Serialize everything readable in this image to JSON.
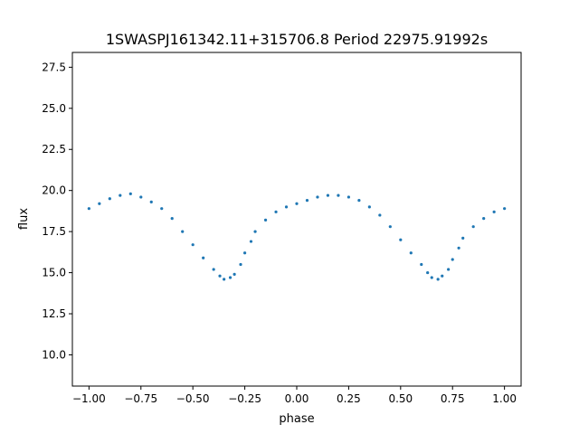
{
  "chart_data": {
    "type": "scatter",
    "title": "1SWASPJ161342.11+315706.8 Period 22975.91992s",
    "xlabel": "phase",
    "ylabel": "flux",
    "xlim": [
      -1.08,
      1.08
    ],
    "ylim": [
      8.1,
      28.4
    ],
    "xticks": [
      -1.0,
      -0.75,
      -0.5,
      -0.25,
      0.0,
      0.25,
      0.5,
      0.75,
      1.0
    ],
    "xtick_labels": [
      "−1.00",
      "−0.75",
      "−0.50",
      "−0.25",
      "0.00",
      "0.25",
      "0.50",
      "0.75",
      "1.00"
    ],
    "yticks": [
      10.0,
      12.5,
      15.0,
      17.5,
      20.0,
      22.5,
      25.0,
      27.5
    ],
    "ytick_labels": [
      "10.0",
      "12.5",
      "15.0",
      "17.5",
      "20.0",
      "22.5",
      "25.0",
      "27.5"
    ],
    "grid": false,
    "point_color": "#1f77b4",
    "series": [
      {
        "x": [
          -1.0,
          -0.95,
          -0.9,
          -0.85,
          -0.8,
          -0.75,
          -0.7,
          -0.65,
          -0.6,
          -0.55,
          -0.5,
          -0.45,
          -0.4,
          -0.37,
          -0.35,
          -0.32,
          -0.3,
          -0.27,
          -0.25,
          -0.22,
          -0.2,
          -0.15,
          -0.1,
          -0.05,
          0.0,
          0.05,
          0.1,
          0.15,
          0.2,
          0.25,
          0.3,
          0.35,
          0.4,
          0.45,
          0.5,
          0.55,
          0.6,
          0.63,
          0.65,
          0.68,
          0.7,
          0.73,
          0.75,
          0.78,
          0.8,
          0.85,
          0.9,
          0.95,
          1.0
        ],
        "y": [
          18.9,
          19.2,
          19.5,
          19.7,
          19.8,
          19.6,
          19.3,
          18.9,
          18.3,
          17.5,
          16.7,
          15.9,
          15.2,
          14.8,
          14.6,
          14.7,
          14.9,
          15.5,
          16.2,
          16.9,
          17.5,
          18.2,
          18.7,
          19.0,
          19.2,
          19.4,
          19.6,
          19.7,
          19.7,
          19.6,
          19.4,
          19.0,
          18.5,
          17.8,
          17.0,
          16.2,
          15.5,
          15.0,
          14.7,
          14.6,
          14.8,
          15.2,
          15.8,
          16.5,
          17.1,
          17.8,
          18.3,
          18.7,
          18.9
        ]
      }
    ]
  }
}
